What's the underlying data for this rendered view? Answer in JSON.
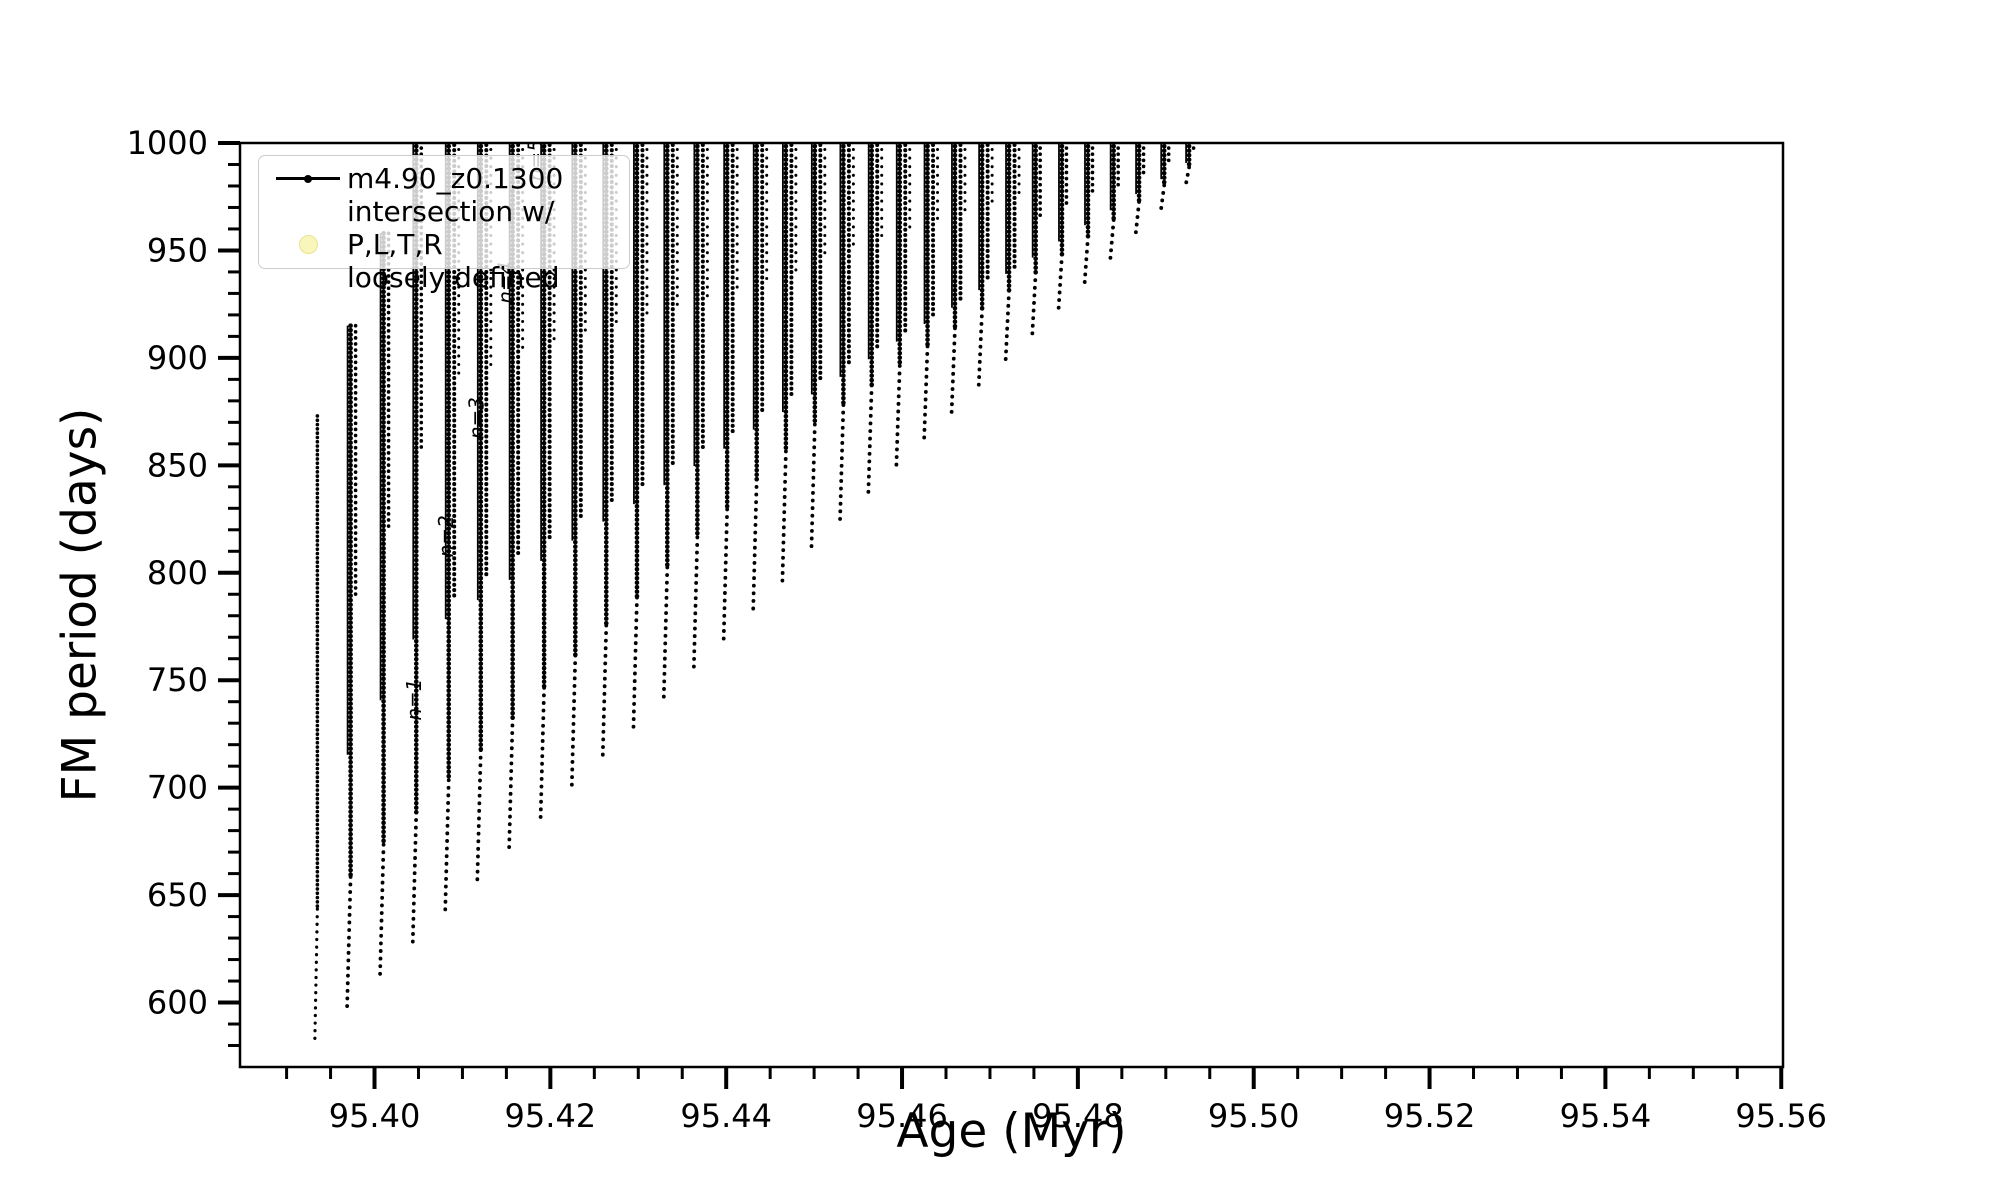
{
  "figure": {
    "background": "#ffffff",
    "line_color": "#000000"
  },
  "legend": {
    "position": "upper left",
    "frame_alpha": 0.8,
    "entries": [
      {
        "marker": "line-dot",
        "color": "#000000",
        "label": "m4.90_z0.1300"
      },
      {
        "marker": "circle",
        "fill": "#f9f6bc",
        "edge": "#eae390",
        "label_lines": [
          "intersection w/ P,L,T,R",
          "loosely defined"
        ]
      }
    ]
  },
  "chart_data": {
    "type": "line",
    "title": "",
    "xlabel": "Age (Myr)",
    "ylabel": "FM period (days)",
    "xlim": [
      95.3847,
      95.5602
    ],
    "ylim": [
      570,
      1000
    ],
    "grid": false,
    "legend_position": "upper left",
    "xticks": {
      "values": [
        95.4,
        95.42,
        95.44,
        95.46,
        95.48,
        95.5,
        95.52,
        95.54,
        95.56
      ],
      "labels": [
        "95.40",
        "95.42",
        "95.44",
        "95.46",
        "95.48",
        "95.50",
        "95.52",
        "95.54",
        "95.56"
      ]
    },
    "yticks": {
      "values": [
        600,
        650,
        700,
        750,
        800,
        850,
        900,
        950,
        1000
      ],
      "labels": [
        "600",
        "650",
        "700",
        "750",
        "800",
        "850",
        "900",
        "950",
        "1000"
      ]
    },
    "x_minor_step": 0.005,
    "y_minor_step": 10,
    "series": [
      {
        "name": "m4.90_z0.1300",
        "color": "#000000",
        "marker": "point",
        "description": "FM period oscillates in rapid thermal-pulse spikes: each pulse plunges from ~1000 days (clipped at top) to a minimum that rises steadily with age; drawn as dense dotted near-vertical strands.",
        "pulses": [
          {
            "age": 95.3935,
            "min": 583,
            "peak": 873
          },
          {
            "age": 95.39728,
            "min": 598,
            "peak": 915
          },
          {
            "age": 95.40103,
            "min": 613,
            "peak": 958
          },
          {
            "age": 95.40475,
            "min": 628,
            "peak": 1009
          },
          {
            "age": 95.40844,
            "min": 643,
            "peak": 1009
          },
          {
            "age": 95.41209,
            "min": 657,
            "peak": 1009
          },
          {
            "age": 95.41571,
            "min": 672,
            "peak": 1009
          },
          {
            "age": 95.41929,
            "min": 686,
            "peak": 1009
          },
          {
            "age": 95.42284,
            "min": 701,
            "peak": 1009
          },
          {
            "age": 95.42636,
            "min": 715,
            "peak": 1009
          },
          {
            "age": 95.42985,
            "min": 728,
            "peak": 1009
          },
          {
            "age": 95.4333,
            "min": 742,
            "peak": 1009
          },
          {
            "age": 95.43672,
            "min": 756,
            "peak": 1009
          },
          {
            "age": 95.44011,
            "min": 769,
            "peak": 1009
          },
          {
            "age": 95.44347,
            "min": 783,
            "peak": 1009
          },
          {
            "age": 95.44679,
            "min": 796,
            "peak": 1009
          },
          {
            "age": 95.45008,
            "min": 809,
            "peak": 1009
          },
          {
            "age": 95.45333,
            "min": 822,
            "peak": 1009
          },
          {
            "age": 95.45655,
            "min": 835,
            "peak": 1009
          },
          {
            "age": 95.45974,
            "min": 848,
            "peak": 1009
          },
          {
            "age": 95.4629,
            "min": 861,
            "peak": 1009
          },
          {
            "age": 95.46602,
            "min": 873,
            "peak": 1009
          },
          {
            "age": 95.46911,
            "min": 886,
            "peak": 1009
          },
          {
            "age": 95.47217,
            "min": 898,
            "peak": 1009
          },
          {
            "age": 95.4752,
            "min": 910,
            "peak": 1009
          },
          {
            "age": 95.47819,
            "min": 922,
            "peak": 1009
          },
          {
            "age": 95.48115,
            "min": 934,
            "peak": 1009
          },
          {
            "age": 95.48407,
            "min": 945,
            "peak": 1009
          },
          {
            "age": 95.48696,
            "min": 957,
            "peak": 1009
          },
          {
            "age": 95.48982,
            "min": 968,
            "peak": 1009
          },
          {
            "age": 95.49265,
            "min": 980,
            "peak": 1009
          }
        ]
      }
    ],
    "annotations": [
      {
        "label": "n=1",
        "age": 95.4053,
        "period": 741,
        "rotation": -90
      },
      {
        "label": "n=2",
        "age": 95.4089,
        "period": 817,
        "rotation": -90
      },
      {
        "label": "n=3",
        "age": 95.4124,
        "period": 872,
        "rotation": -90
      },
      {
        "label": "n=4",
        "age": 95.4157,
        "period": 935,
        "rotation": -90
      },
      {
        "label": "n=5",
        "age": 95.4191,
        "period": 992,
        "rotation": -90
      }
    ]
  }
}
